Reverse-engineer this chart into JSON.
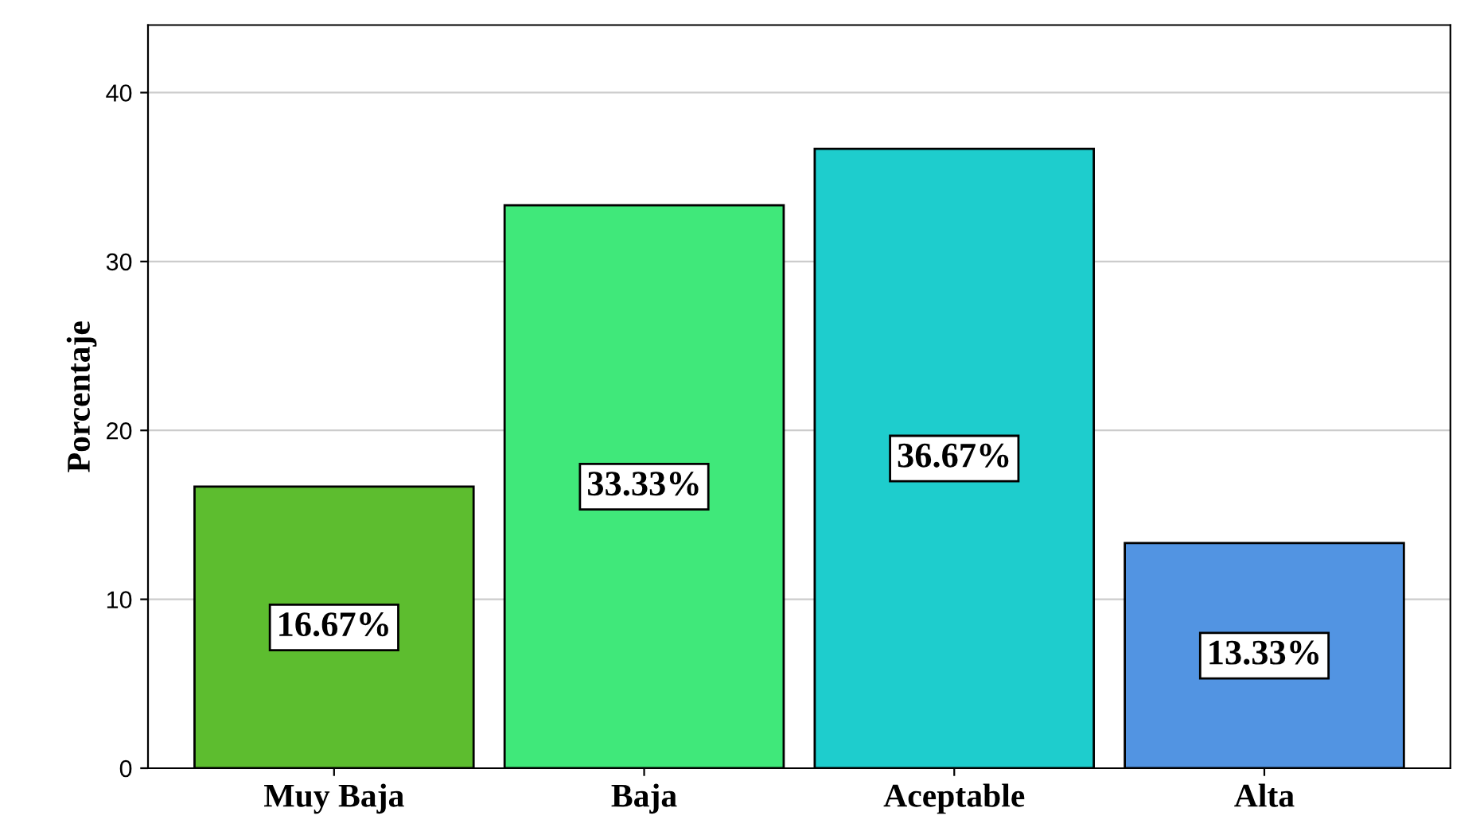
{
  "chart_data": {
    "type": "bar",
    "ylabel": "Porcentaje",
    "categories": [
      "Muy Baja",
      "Baja",
      "Aceptable",
      "Alta"
    ],
    "values": [
      16.67,
      33.33,
      36.67,
      13.33
    ],
    "colors": [
      "#5dbd2f",
      "#40e87a",
      "#1ecdcd",
      "#5294e2"
    ],
    "value_labels": [
      "16.67%",
      "33.33%",
      "36.67%",
      "13.33%"
    ],
    "ylim": [
      0,
      44
    ],
    "yticks": [
      0,
      10,
      20,
      30,
      40
    ],
    "grid": "y",
    "legend": false
  }
}
